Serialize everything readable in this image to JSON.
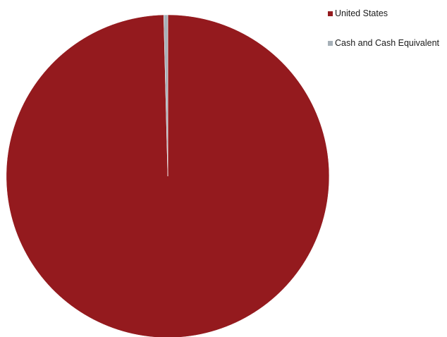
{
  "chart_data": {
    "type": "pie",
    "categories": [
      "United States",
      "Cash and Cash Equivalent"
    ],
    "values": [
      99.6,
      0.4
    ],
    "colors": [
      "#941a1e",
      "#a6b0b8"
    ],
    "legend_position": "top-right"
  }
}
